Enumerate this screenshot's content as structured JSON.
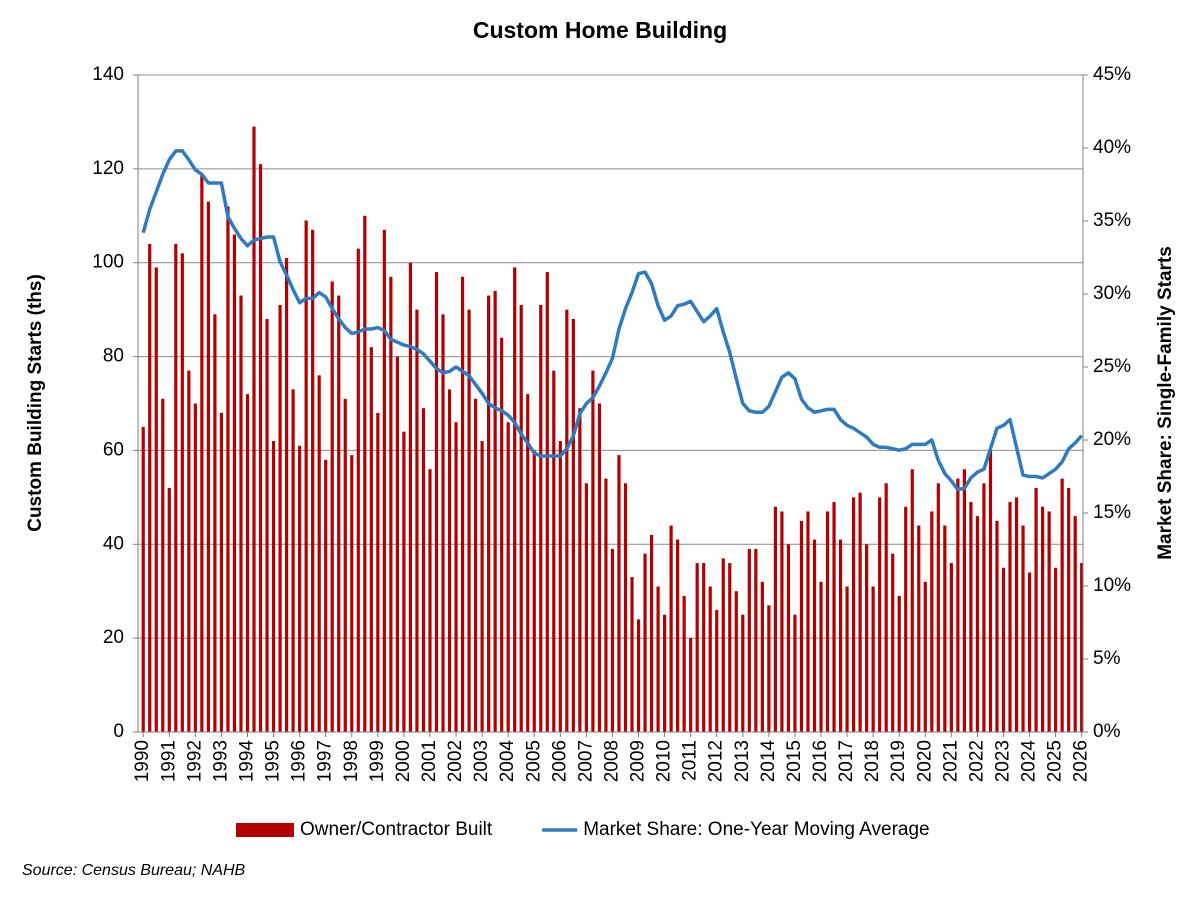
{
  "chart_data": {
    "type": "combo",
    "title": "Custom Home Building",
    "y_label": "Custom Building Starts (ths)",
    "y2_label": "Market Share: Single-Family Starts",
    "source": "Source: Census Bureau; NAHB",
    "x": [
      1990,
      1990.25,
      1990.5,
      1990.75,
      1991,
      1991.25,
      1991.5,
      1991.75,
      1992,
      1992.25,
      1992.5,
      1992.75,
      1993,
      1993.25,
      1993.5,
      1993.75,
      1994,
      1994.25,
      1994.5,
      1994.75,
      1995,
      1995.25,
      1995.5,
      1995.75,
      1996,
      1996.25,
      1996.5,
      1996.75,
      1997,
      1997.25,
      1997.5,
      1997.75,
      1998,
      1998.25,
      1998.5,
      1998.75,
      1999,
      1999.25,
      1999.5,
      1999.75,
      2000,
      2000.25,
      2000.5,
      2000.75,
      2001,
      2001.25,
      2001.5,
      2001.75,
      2002,
      2002.25,
      2002.5,
      2002.75,
      2003,
      2003.25,
      2003.5,
      2003.75,
      2004,
      2004.25,
      2004.5,
      2004.75,
      2005,
      2005.25,
      2005.5,
      2005.75,
      2006,
      2006.25,
      2006.5,
      2006.75,
      2007,
      2007.25,
      2007.5,
      2007.75,
      2008,
      2008.25,
      2008.5,
      2008.75,
      2009,
      2009.25,
      2009.5,
      2009.75,
      2010,
      2010.25,
      2010.5,
      2010.75,
      2011,
      2011.25,
      2011.5,
      2011.75,
      2012,
      2012.25,
      2012.5,
      2012.75,
      2013,
      2013.25,
      2013.5,
      2013.75,
      2014,
      2014.25,
      2014.5,
      2014.75,
      2015,
      2015.25,
      2015.5,
      2015.75,
      2016,
      2016.25,
      2016.5,
      2016.75,
      2017,
      2017.25,
      2017.5,
      2017.75,
      2018,
      2018.25,
      2018.5,
      2018.75,
      2019,
      2019.25,
      2019.5,
      2019.75,
      2020,
      2020.25,
      2020.5,
      2020.75,
      2021,
      2021.25,
      2021.5,
      2021.75,
      2022,
      2022.25,
      2022.5,
      2022.75,
      2023,
      2023.25,
      2023.5,
      2023.75,
      2024,
      2024.25,
      2024.5,
      2024.75,
      2025,
      2025.25,
      2025.5,
      2025.75,
      2026
    ],
    "xlim": [
      1989.8,
      2026.05
    ],
    "xticks": [
      1990,
      1991,
      1992,
      1993,
      1994,
      1995,
      1996,
      1997,
      1998,
      1999,
      2000,
      2001,
      2002,
      2003,
      2004,
      2005,
      2006,
      2007,
      2008,
      2009,
      2010,
      2011,
      2012,
      2013,
      2014,
      2015,
      2016,
      2017,
      2018,
      2019,
      2020,
      2021,
      2022,
      2023,
      2024,
      2025,
      2026
    ],
    "ylim": [
      0,
      140
    ],
    "yticks": [
      0,
      20,
      40,
      60,
      80,
      100,
      120,
      140
    ],
    "y2lim": [
      0,
      45
    ],
    "y2ticks": [
      {
        "value": 0,
        "label": "0%"
      },
      {
        "value": 5,
        "label": "5%"
      },
      {
        "value": 10,
        "label": "10%"
      },
      {
        "value": 15,
        "label": "15%"
      },
      {
        "value": 20,
        "label": "20%"
      },
      {
        "value": 25,
        "label": "25%"
      },
      {
        "value": 30,
        "label": "30%"
      },
      {
        "value": 35,
        "label": "35%"
      },
      {
        "value": 40,
        "label": "40%"
      },
      {
        "value": 45,
        "label": "45%"
      }
    ],
    "grid": true,
    "legend": "bottom",
    "series": [
      {
        "name": "Owner/Contractor Built",
        "type": "bar",
        "color": "#b30000",
        "values": [
          65,
          104,
          99,
          71,
          52,
          104,
          102,
          77,
          70,
          119,
          113,
          89,
          68,
          112,
          106,
          93,
          72,
          129,
          121,
          88,
          62,
          91,
          101,
          73,
          61,
          109,
          107,
          76,
          58,
          96,
          93,
          71,
          59,
          103,
          110,
          82,
          68,
          107,
          97,
          80,
          64,
          100,
          90,
          69,
          56,
          98,
          89,
          73,
          66,
          97,
          90,
          71,
          62,
          93,
          94,
          84,
          66,
          99,
          91,
          72,
          60,
          91,
          98,
          77,
          62,
          90,
          88,
          69,
          53,
          77,
          70,
          54,
          39,
          59,
          53,
          33,
          24,
          38,
          42,
          31,
          25,
          44,
          41,
          29,
          20,
          36,
          36,
          31,
          26,
          37,
          36,
          30,
          25,
          39,
          39,
          32,
          27,
          48,
          47,
          40,
          25,
          45,
          47,
          41,
          32,
          47,
          49,
          41,
          31,
          50,
          51,
          40,
          31,
          50,
          53,
          38,
          29,
          48,
          56,
          44,
          32,
          47,
          53,
          44,
          36,
          54,
          56,
          49,
          46,
          53,
          60,
          45,
          35,
          49,
          50,
          44,
          34,
          52,
          48,
          47,
          35,
          54,
          52,
          46,
          36
        ]
      },
      {
        "name": "Market Share: One-Year Moving Average",
        "type": "line",
        "axis": "y2",
        "color": "#2e7bc0",
        "values": [
          34.2,
          35.8,
          37.0,
          38.2,
          39.2,
          39.8,
          39.8,
          39.2,
          38.5,
          38.2,
          37.6,
          37.6,
          37.6,
          35.3,
          34.5,
          33.8,
          33.3,
          33.7,
          33.8,
          33.9,
          33.9,
          32.2,
          31.3,
          30.3,
          29.4,
          29.7,
          29.7,
          30.1,
          29.8,
          29.0,
          28.3,
          27.7,
          27.3,
          27.4,
          27.6,
          27.6,
          27.7,
          27.5,
          26.9,
          26.7,
          26.5,
          26.4,
          26.2,
          25.9,
          25.4,
          24.9,
          24.6,
          24.7,
          25.0,
          24.7,
          24.4,
          23.8,
          23.2,
          22.5,
          22.2,
          22.0,
          21.7,
          21.2,
          20.4,
          19.8,
          19.1,
          18.9,
          18.9,
          18.9,
          18.9,
          19.4,
          20.3,
          21.8,
          22.5,
          22.9,
          23.7,
          24.6,
          25.6,
          27.6,
          29.0,
          30.1,
          31.4,
          31.5,
          30.7,
          29.2,
          28.2,
          28.5,
          29.2,
          29.3,
          29.5,
          28.8,
          28.1,
          28.5,
          29.0,
          27.4,
          26.0,
          24.2,
          22.5,
          22.0,
          21.9,
          21.9,
          22.3,
          23.3,
          24.3,
          24.6,
          24.2,
          22.8,
          22.2,
          21.9,
          22.0,
          22.1,
          22.1,
          21.4,
          21.0,
          20.8,
          20.5,
          20.2,
          19.7,
          19.5,
          19.5,
          19.4,
          19.3,
          19.4,
          19.7,
          19.7,
          19.7,
          20.0,
          18.6,
          17.7,
          17.2,
          16.6,
          16.7,
          17.4,
          17.8,
          18.0,
          19.4,
          20.8,
          21.0,
          21.4,
          19.5,
          17.6,
          17.5,
          17.5,
          17.4,
          17.7,
          18.0,
          18.5,
          19.4,
          19.8,
          20.3
        ]
      }
    ]
  }
}
